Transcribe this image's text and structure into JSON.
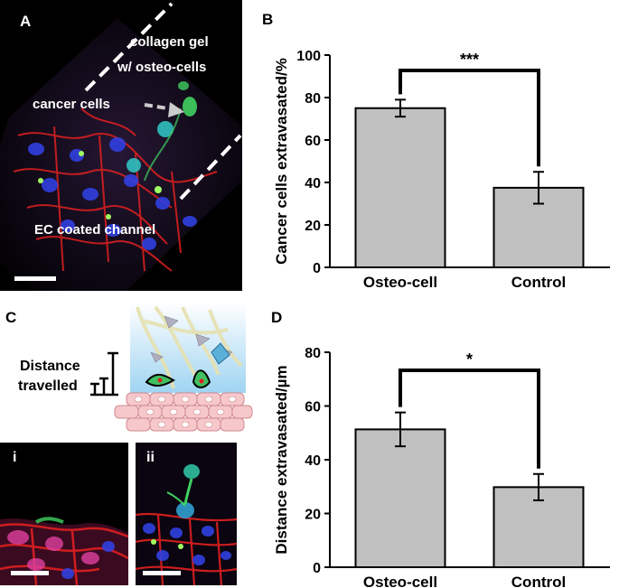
{
  "panels": {
    "A": {
      "letter": "A",
      "label_gel_line1": "collagen gel",
      "label_gel_line2": "w/ osteo-cells",
      "label_cancer": "cancer cells",
      "label_channel": "EC coated channel"
    },
    "B": {
      "letter": "B"
    },
    "C": {
      "letter": "C",
      "distance_line1": "Distance",
      "distance_line2": "travelled",
      "sub_i": "i",
      "sub_ii": "ii"
    },
    "D": {
      "letter": "D"
    }
  },
  "colors": {
    "bar_fill": "#c0c0c0",
    "bar_stroke": "#000000",
    "micro_red": "#e02020",
    "micro_green": "#40d060",
    "micro_blue": "#3040e0"
  },
  "chart_data": [
    {
      "id": "B",
      "type": "bar",
      "categories": [
        "Osteo-cell",
        "Control"
      ],
      "values": [
        75,
        37.5
      ],
      "errors": [
        4,
        7.5
      ],
      "ylabel": "Cancer cells extravasated/%",
      "ylim": [
        0,
        100
      ],
      "yticks": [
        0,
        20,
        40,
        60,
        80,
        100
      ],
      "significance": "***",
      "grid": false
    },
    {
      "id": "D",
      "type": "bar",
      "categories": [
        "Osteo-cell",
        "Control"
      ],
      "values": [
        51.3,
        29.8
      ],
      "errors": [
        6.3,
        4.9
      ],
      "ylabel": "Distance extravasated/µm",
      "ylim": [
        0,
        80
      ],
      "yticks": [
        0,
        20,
        40,
        60,
        80
      ],
      "significance": "*",
      "grid": false
    }
  ]
}
